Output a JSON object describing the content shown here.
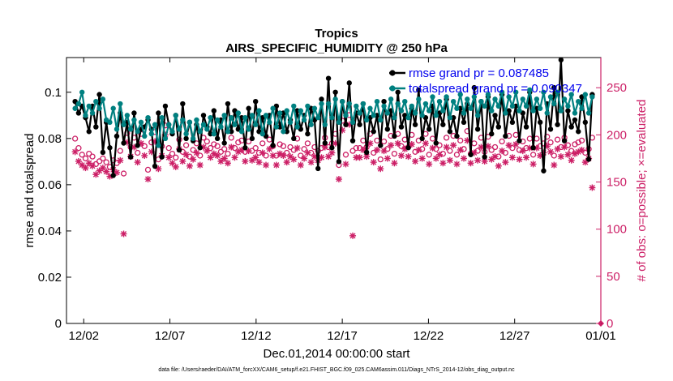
{
  "chart_data": {
    "type": "line",
    "title": "Tropics",
    "subtitle": "AIRS_SPECIFIC_HUMIDITY @ 250 hPa",
    "xlabel": "Dec.01,2014 00:00:00 start",
    "ylabel": "rmse and totalspread",
    "y2label": "# of obs: o=possible; ×=evaluated",
    "footnote": "data file: /Users/raeder/DAI/ATM_forcXX/CAM6_setup/f.e21.FHIST_BGC.f09_025.CAM6assim.011/Diags_NTrS_2014-12/obs_diag_output.nc",
    "xlim": [
      0.5,
      31.5
    ],
    "ylim": [
      0,
      0.115
    ],
    "y2lim": [
      0,
      282
    ],
    "x_ticks": [
      1.5,
      6.5,
      11.5,
      16.5,
      21.5,
      26.5,
      31.5
    ],
    "x_tick_labels": [
      "12/02",
      "12/07",
      "12/12",
      "12/17",
      "12/22",
      "12/27",
      "01/01"
    ],
    "y_ticks": [
      0,
      0.02,
      0.04,
      0.06,
      0.08,
      0.1
    ],
    "y_tick_labels": [
      "0",
      "0.02",
      "0.04",
      "0.06",
      "0.08",
      "0.1"
    ],
    "y2_ticks": [
      0,
      50,
      100,
      150,
      200,
      250
    ],
    "y2_tick_labels": [
      "0",
      "50",
      "100",
      "150",
      "200",
      "250"
    ],
    "legend_position": "top-right",
    "series": [
      {
        "name": "rmse",
        "legend_label": "rmse grand pr = 0.087485",
        "axis": "left",
        "color": "#000000",
        "marker": "filled-circle",
        "values": [
          0.096,
          0.091,
          0.094,
          0.089,
          0.083,
          0.094,
          0.085,
          0.099,
          0.074,
          0.087,
          0.076,
          0.064,
          0.081,
          0.091,
          0.078,
          0.087,
          0.072,
          0.091,
          0.077,
          0.084,
          0.085,
          0.088,
          0.084,
          0.068,
          0.091,
          0.072,
          0.094,
          0.086,
          0.082,
          0.09,
          0.075,
          0.095,
          0.08,
          0.087,
          0.079,
          0.086,
          0.076,
          0.09,
          0.085,
          0.082,
          0.092,
          0.08,
          0.088,
          0.078,
          0.095,
          0.083,
          0.092,
          0.084,
          0.089,
          0.076,
          0.093,
          0.08,
          0.096,
          0.083,
          0.089,
          0.081,
          0.09,
          0.077,
          0.094,
          0.085,
          0.091,
          0.083,
          0.088,
          0.08,
          0.092,
          0.084,
          0.09,
          0.082,
          0.093,
          0.088,
          0.067,
          0.097,
          0.078,
          0.106,
          0.076,
          0.1,
          0.07,
          0.096,
          0.086,
          0.104,
          0.079,
          0.091,
          0.086,
          0.095,
          0.074,
          0.089,
          0.083,
          0.09,
          0.077,
          0.096,
          0.084,
          0.092,
          0.081,
          0.1,
          0.085,
          0.09,
          0.076,
          0.093,
          0.086,
          0.101,
          0.08,
          0.089,
          0.084,
          0.094,
          0.078,
          0.091,
          0.086,
          0.097,
          0.083,
          0.089,
          0.081,
          0.093,
          0.087,
          0.095,
          0.073,
          0.102,
          0.084,
          0.096,
          0.072,
          0.098,
          0.082,
          0.09,
          0.085,
          0.099,
          0.081,
          0.092,
          0.087,
          0.094,
          0.079,
          0.091,
          0.085,
          0.1,
          0.076,
          0.093,
          0.087,
          0.066,
          0.095,
          0.084,
          0.102,
          0.086,
          0.114,
          0.079,
          0.092,
          0.085,
          0.088,
          0.083,
          0.098,
          0.087,
          0.071,
          0.099
        ]
      },
      {
        "name": "totalspread",
        "legend_label": "totalspread grand pr = 0.090347",
        "axis": "left",
        "color": "#008080",
        "marker": "filled-circle",
        "values": [
          0.093,
          0.095,
          0.1,
          0.09,
          0.094,
          0.091,
          0.096,
          0.093,
          0.097,
          0.088,
          0.087,
          0.093,
          0.084,
          0.095,
          0.086,
          0.09,
          0.084,
          0.088,
          0.083,
          0.087,
          0.081,
          0.089,
          0.082,
          0.086,
          0.077,
          0.089,
          0.08,
          0.086,
          0.083,
          0.09,
          0.084,
          0.088,
          0.082,
          0.087,
          0.08,
          0.088,
          0.083,
          0.086,
          0.084,
          0.089,
          0.082,
          0.088,
          0.085,
          0.09,
          0.083,
          0.089,
          0.086,
          0.091,
          0.083,
          0.089,
          0.084,
          0.09,
          0.086,
          0.092,
          0.082,
          0.09,
          0.087,
          0.093,
          0.085,
          0.091,
          0.083,
          0.092,
          0.087,
          0.094,
          0.085,
          0.092,
          0.088,
          0.094,
          0.086,
          0.093,
          0.089,
          0.095,
          0.086,
          0.095,
          0.089,
          0.097,
          0.087,
          0.096,
          0.09,
          0.095,
          0.087,
          0.094,
          0.091,
          0.095,
          0.088,
          0.093,
          0.09,
          0.096,
          0.088,
          0.094,
          0.091,
          0.097,
          0.089,
          0.095,
          0.092,
          0.096,
          0.089,
          0.094,
          0.091,
          0.097,
          0.09,
          0.095,
          0.092,
          0.098,
          0.09,
          0.096,
          0.092,
          0.098,
          0.089,
          0.096,
          0.093,
          0.099,
          0.091,
          0.097,
          0.093,
          0.098,
          0.09,
          0.096,
          0.094,
          0.099,
          0.092,
          0.097,
          0.094,
          0.1,
          0.091,
          0.098,
          0.094,
          0.1,
          0.092,
          0.097,
          0.094,
          0.101,
          0.092,
          0.097,
          0.093,
          0.1,
          0.091,
          0.098,
          0.095,
          0.1,
          0.092,
          0.097,
          0.094,
          0.099,
          0.091,
          0.096,
          0.093,
          0.099,
          0.091,
          0.098
        ]
      },
      {
        "name": "obs possible",
        "axis": "right",
        "color": "#cc1f66",
        "marker": "open-circle",
        "values": [
          196,
          186,
          179,
          175,
          180,
          177,
          169,
          172,
          175,
          171,
          166,
          173,
          170,
          183,
          159,
          202,
          187,
          197,
          181,
          201,
          188,
          163,
          192,
          203,
          174,
          188,
          210,
          186,
          180,
          176,
          195,
          182,
          189,
          177,
          184,
          191,
          178,
          197,
          193,
          186,
          190,
          188,
          182,
          185,
          180,
          197,
          186,
          192,
          194,
          182,
          193,
          183,
          186,
          181,
          191,
          178,
          195,
          188,
          178,
          190,
          188,
          181,
          187,
          184,
          196,
          178,
          185,
          191,
          181,
          187,
          183,
          186,
          197,
          187,
          191,
          201,
          168,
          215,
          179,
          221,
          183,
          186,
          186,
          194,
          187,
          201,
          181,
          194,
          174,
          193,
          185,
          199,
          180,
          201,
          188,
          195,
          187,
          200,
          182,
          194,
          185,
          201,
          179,
          196,
          185,
          189,
          180,
          197,
          183,
          199,
          179,
          194,
          185,
          204,
          180,
          191,
          183,
          197,
          182,
          198,
          184,
          187,
          177,
          193,
          181,
          199,
          186,
          200,
          184,
          193,
          186,
          196,
          179,
          196,
          188,
          191,
          198,
          192,
          178,
          195,
          187,
          197,
          189,
          183,
          190,
          192,
          194,
          181,
          185,
          197
        ]
      },
      {
        "name": "obs evaluated",
        "axis": "right",
        "color": "#cc1f66",
        "marker": "asterisk",
        "values": [
          182,
          172,
          168,
          165,
          170,
          167,
          158,
          162,
          165,
          161,
          156,
          163,
          160,
          173,
          95,
          192,
          177,
          187,
          171,
          191,
          178,
          153,
          182,
          193,
          164,
          178,
          200,
          176,
          170,
          166,
          185,
          172,
          179,
          167,
          174,
          181,
          168,
          187,
          183,
          176,
          180,
          178,
          172,
          175,
          170,
          187,
          176,
          182,
          184,
          172,
          183,
          173,
          176,
          171,
          181,
          168,
          185,
          178,
          168,
          180,
          178,
          171,
          177,
          174,
          186,
          168,
          175,
          181,
          171,
          177,
          173,
          176,
          187,
          177,
          181,
          191,
          153,
          205,
          169,
          211,
          93,
          176,
          176,
          184,
          177,
          191,
          171,
          184,
          164,
          183,
          175,
          189,
          170,
          191,
          178,
          185,
          177,
          190,
          172,
          184,
          175,
          191,
          169,
          186,
          175,
          179,
          170,
          187,
          173,
          189,
          169,
          184,
          175,
          194,
          170,
          181,
          173,
          187,
          172,
          188,
          174,
          177,
          167,
          183,
          171,
          189,
          176,
          190,
          174,
          183,
          176,
          186,
          169,
          186,
          178,
          181,
          188,
          182,
          168,
          185,
          177,
          187,
          179,
          173,
          180,
          182,
          184,
          171,
          175,
          144
        ]
      }
    ]
  }
}
